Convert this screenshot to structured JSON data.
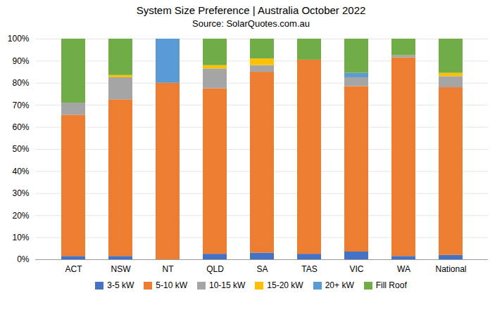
{
  "chart_data": {
    "type": "bar",
    "stacked": true,
    "title": "System Size Preference  |  Australia October 2022",
    "subtitle": "Source: SolarQuotes.com.au",
    "categories": [
      "ACT",
      "NSW",
      "NT",
      "QLD",
      "SA",
      "TAS",
      "VIC",
      "WA",
      "National"
    ],
    "series": [
      {
        "name": "3-5 kW",
        "color": "#4472C4",
        "values": [
          1.5,
          1.5,
          0,
          2.5,
          3,
          2.5,
          3.5,
          1.5,
          2
        ]
      },
      {
        "name": "5-10 kW",
        "color": "#ED7D31",
        "values": [
          64,
          71,
          80,
          75,
          82,
          88,
          75,
          90,
          76
        ]
      },
      {
        "name": "10-15 kW",
        "color": "#A5A5A5",
        "values": [
          5.5,
          10,
          0,
          9,
          3,
          0,
          4,
          1,
          5
        ]
      },
      {
        "name": "15-20 kW",
        "color": "#FFC000",
        "values": [
          0,
          1,
          0,
          1.5,
          3,
          0,
          0,
          0,
          1.5
        ]
      },
      {
        "name": "20+ kW",
        "color": "#5B9BD5",
        "values": [
          0,
          0,
          20,
          0,
          0,
          0,
          2,
          0,
          0
        ]
      },
      {
        "name": "Fill Roof",
        "color": "#70AD47",
        "values": [
          29,
          16.5,
          0,
          12,
          9,
          9.5,
          15.5,
          7.5,
          15.5
        ]
      }
    ],
    "ylim": [
      0,
      100
    ],
    "yticks": [
      {
        "value": 0,
        "label": "0%"
      },
      {
        "value": 10,
        "label": "10%"
      },
      {
        "value": 20,
        "label": "20%"
      },
      {
        "value": 30,
        "label": "30%"
      },
      {
        "value": 40,
        "label": "40%"
      },
      {
        "value": 50,
        "label": "50%"
      },
      {
        "value": 60,
        "label": "60%"
      },
      {
        "value": 70,
        "label": "70%"
      },
      {
        "value": 80,
        "label": "80%"
      },
      {
        "value": 90,
        "label": "90%"
      },
      {
        "value": 100,
        "label": "100%"
      }
    ],
    "grid": true,
    "legend": "bottom"
  }
}
